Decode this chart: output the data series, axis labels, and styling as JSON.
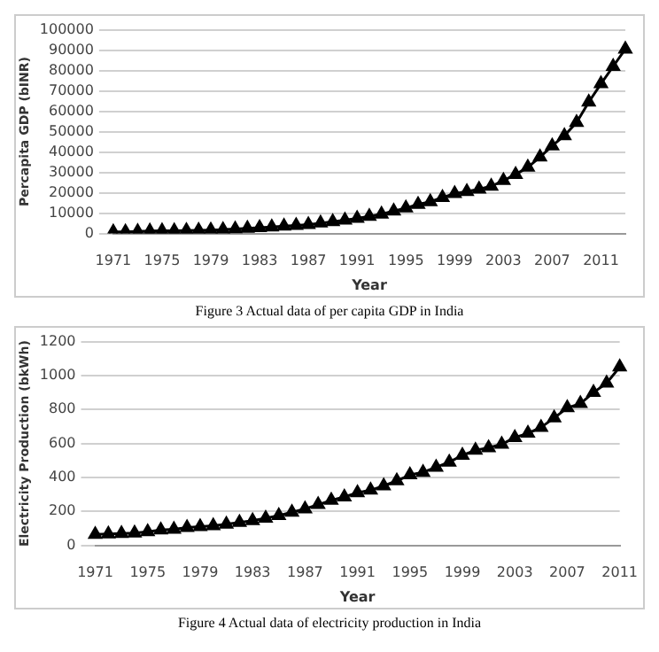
{
  "chart_data": [
    {
      "type": "line",
      "xlabel": "Year",
      "ylabel": "Percapita GDP (bINR)",
      "categories": [
        "1971",
        null,
        null,
        null,
        "1975",
        null,
        null,
        null,
        "1979",
        null,
        null,
        null,
        "1983",
        null,
        null,
        null,
        "1987",
        null,
        null,
        null,
        "1991",
        null,
        null,
        null,
        "1995",
        null,
        null,
        null,
        "1999",
        null,
        null,
        null,
        "2003",
        null,
        null,
        null,
        "2007",
        null,
        null,
        null,
        "2011",
        null,
        null
      ],
      "series": [
        {
          "color": "#000000",
          "values": [
            800,
            850,
            1000,
            1200,
            1300,
            1350,
            1500,
            1600,
            1700,
            1900,
            2200,
            2500,
            2900,
            3200,
            3600,
            4000,
            4400,
            5100,
            5800,
            6600,
            7400,
            8400,
            9500,
            11000,
            12500,
            14300,
            15600,
            17700,
            19600,
            20600,
            21800,
            23200,
            26000,
            29000,
            32500,
            37500,
            43000,
            48000,
            54500,
            64500,
            73500,
            82000,
            90500
          ]
        }
      ],
      "ylim": [
        0,
        100000
      ],
      "yticks": [
        0,
        10000,
        20000,
        30000,
        40000,
        50000,
        60000,
        70000,
        80000,
        90000,
        100000
      ],
      "grid": "y",
      "legend": false,
      "marker": "triangle",
      "line_style": "solid",
      "annotations": [
        "Figure 3 Actual data of per capita GDP in India"
      ]
    },
    {
      "type": "line",
      "xlabel": "Year",
      "ylabel": "Electricity Production (bkWh)",
      "categories": [
        "1971",
        null,
        null,
        null,
        "1975",
        null,
        null,
        null,
        "1979",
        null,
        null,
        null,
        "1983",
        null,
        null,
        null,
        "1987",
        null,
        null,
        null,
        "1991",
        null,
        null,
        null,
        "1995",
        null,
        null,
        null,
        "1999",
        null,
        null,
        null,
        "2003",
        null,
        null,
        null,
        "2007",
        null,
        null,
        null,
        "2011"
      ],
      "series": [
        {
          "color": "#000000",
          "values": [
            65,
            67,
            70,
            72,
            80,
            90,
            95,
            105,
            110,
            115,
            125,
            135,
            145,
            160,
            175,
            195,
            215,
            240,
            265,
            285,
            310,
            325,
            350,
            380,
            415,
            430,
            460,
            490,
            530,
            560,
            575,
            595,
            635,
            660,
            695,
            750,
            810,
            835,
            900,
            955,
            1050
          ]
        }
      ],
      "ylim": [
        0,
        1200
      ],
      "yticks": [
        0,
        200,
        400,
        600,
        800,
        1000,
        1200
      ],
      "grid": "y",
      "legend": false,
      "marker": "triangle",
      "line_style": "solid",
      "annotations": [
        "Figure 4 Actual data of electricity production in India"
      ]
    }
  ]
}
